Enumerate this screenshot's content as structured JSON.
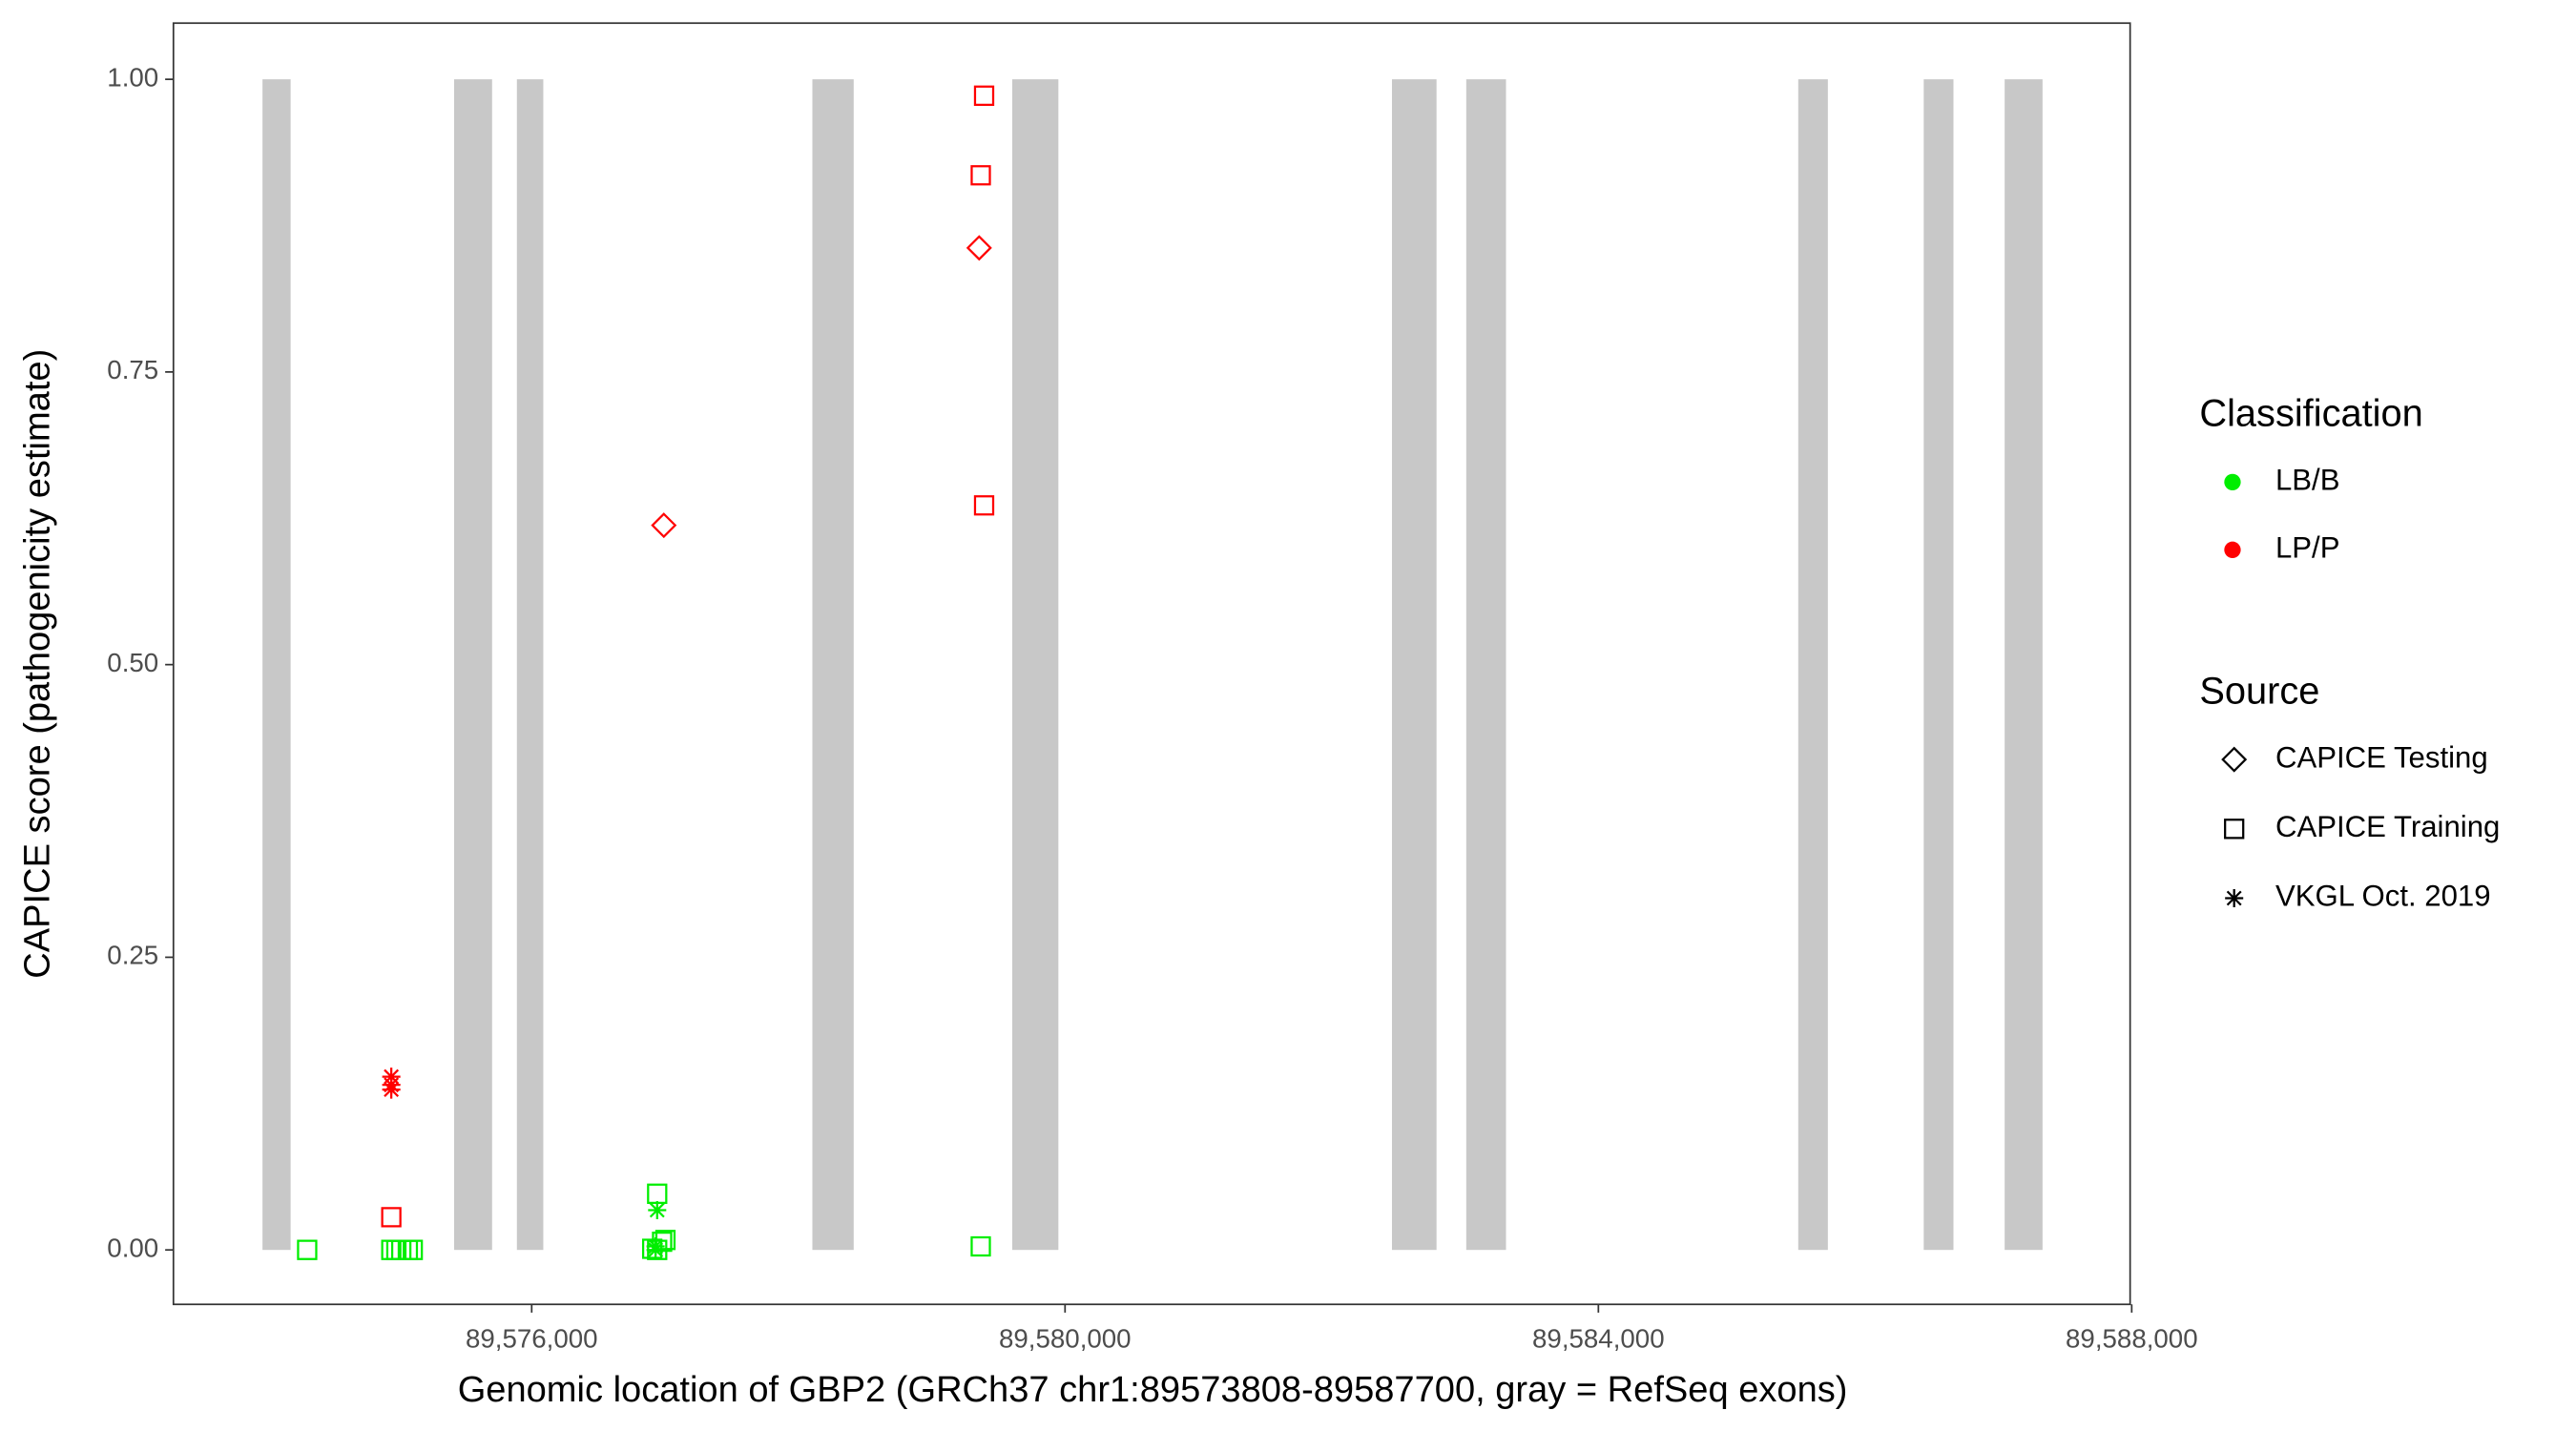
{
  "chart_data": {
    "type": "scatter",
    "xlabel": "Genomic location of GBP2 (GRCh37 chr1:89573808-89587700, gray = RefSeq exons)",
    "ylabel": "CAPICE score (pathogenicity estimate)",
    "xlim": [
      89573313,
      89587988
    ],
    "ylim": [
      -0.0465,
      1.048
    ],
    "xticks": [
      {
        "value": 89576000,
        "label": "89,576,000"
      },
      {
        "value": 89580000,
        "label": "89,580,000"
      },
      {
        "value": 89584000,
        "label": "89,584,000"
      },
      {
        "value": 89588000,
        "label": "89,588,000"
      }
    ],
    "yticks": [
      {
        "value": 0,
        "label": "0.00"
      },
      {
        "value": 0.25,
        "label": "0.25"
      },
      {
        "value": 0.5,
        "label": "0.50"
      },
      {
        "value": 0.75,
        "label": "0.75"
      },
      {
        "value": 1,
        "label": "1.00"
      }
    ],
    "exon_color": "#c8c8c8",
    "exons": [
      {
        "start": 89573981,
        "end": 89574192,
        "ymin": 0,
        "ymax": 1
      },
      {
        "start": 89575418,
        "end": 89575703,
        "ymin": 0,
        "ymax": 1
      },
      {
        "start": 89575889,
        "end": 89576087,
        "ymin": 0,
        "ymax": 1
      },
      {
        "start": 89578105,
        "end": 89578415,
        "ymin": 0,
        "ymax": 1
      },
      {
        "start": 89579604,
        "end": 89579950,
        "ymin": 0,
        "ymax": 1
      },
      {
        "start": 89582452,
        "end": 89582786,
        "ymin": 0,
        "ymax": 1
      },
      {
        "start": 89583009,
        "end": 89583307,
        "ymin": 0,
        "ymax": 1
      },
      {
        "start": 89585499,
        "end": 89585721,
        "ymin": 0,
        "ymax": 1
      },
      {
        "start": 89586440,
        "end": 89586663,
        "ymin": 0,
        "ymax": 1
      },
      {
        "start": 89587047,
        "end": 89587331,
        "ymin": 0,
        "ymax": 1
      }
    ],
    "legend_classification": {
      "title": "Classification",
      "items": [
        {
          "name": "LB/B",
          "color": "#00ee00"
        },
        {
          "name": "LP/P",
          "color": "#ff0000"
        }
      ]
    },
    "legend_source": {
      "title": "Source",
      "items": [
        {
          "name": "CAPICE Testing",
          "shape": "diamond"
        },
        {
          "name": "CAPICE Training",
          "shape": "square"
        },
        {
          "name": "VKGL Oct. 2019",
          "shape": "asterisk"
        }
      ]
    },
    "series": [
      {
        "classification": "LB/B",
        "source": "CAPICE Training",
        "x": [
          89574316,
          89574947,
          89574985,
          89575022,
          89575071,
          89575108,
          89576941,
          89576941,
          89576978,
          89577003,
          89576904,
          89579368
        ],
        "y": [
          0,
          0,
          0,
          0,
          0,
          0,
          0.048,
          0,
          0.007,
          0.0085,
          0.001,
          0.003
        ]
      },
      {
        "classification": "LB/B",
        "source": "VKGL Oct. 2019",
        "x": [
          89576941,
          89576929,
          89576929
        ],
        "y": [
          0.034,
          0.003,
          0
        ]
      },
      {
        "classification": "LP/P",
        "source": "CAPICE Training",
        "x": [
          89574947,
          89579393,
          89579368,
          89579393
        ],
        "y": [
          0.028,
          0.986,
          0.918,
          0.636
        ]
      },
      {
        "classification": "LP/P",
        "source": "CAPICE Testing",
        "x": [
          89576991,
          89579356
        ],
        "y": [
          0.619,
          0.856
        ]
      },
      {
        "classification": "LP/P",
        "source": "VKGL Oct. 2019",
        "x": [
          89574947,
          89574947,
          89574947
        ],
        "y": [
          0.148,
          0.141,
          0.137
        ]
      }
    ]
  }
}
